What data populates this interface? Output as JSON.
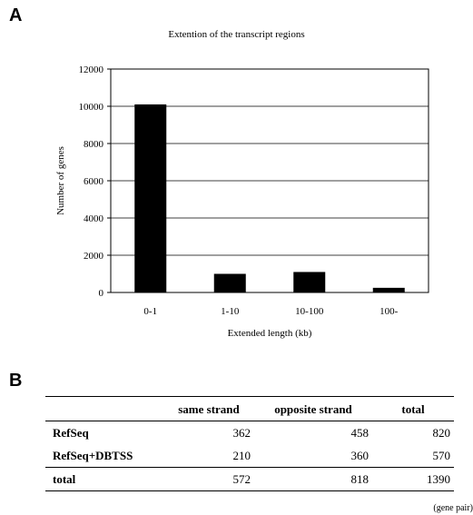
{
  "panel_a": {
    "letter": "A"
  },
  "panel_b": {
    "letter": "B"
  },
  "chart_data": {
    "type": "bar",
    "title": "Extention of the transcript regions",
    "xlabel": "Extended length (kb)",
    "ylabel": "Number of genes",
    "categories": [
      "0-1",
      "1-10",
      "10-100",
      "100-"
    ],
    "values": [
      10100,
      1000,
      1100,
      250
    ],
    "ylim": [
      0,
      12000
    ],
    "yticks": [
      0,
      2000,
      4000,
      6000,
      8000,
      10000,
      12000
    ],
    "grid": true,
    "bar_color": "#000000"
  },
  "table": {
    "headers": [
      "",
      "same strand",
      "opposite strand",
      "total"
    ],
    "rows": [
      {
        "label": "RefSeq",
        "values": [
          "362",
          "458",
          "820"
        ]
      },
      {
        "label": "RefSeq+DBTSS",
        "values": [
          "210",
          "360",
          "570"
        ]
      },
      {
        "label": "total",
        "values": [
          "572",
          "818",
          "1390"
        ]
      }
    ],
    "unit_note": "(gene pair)"
  }
}
